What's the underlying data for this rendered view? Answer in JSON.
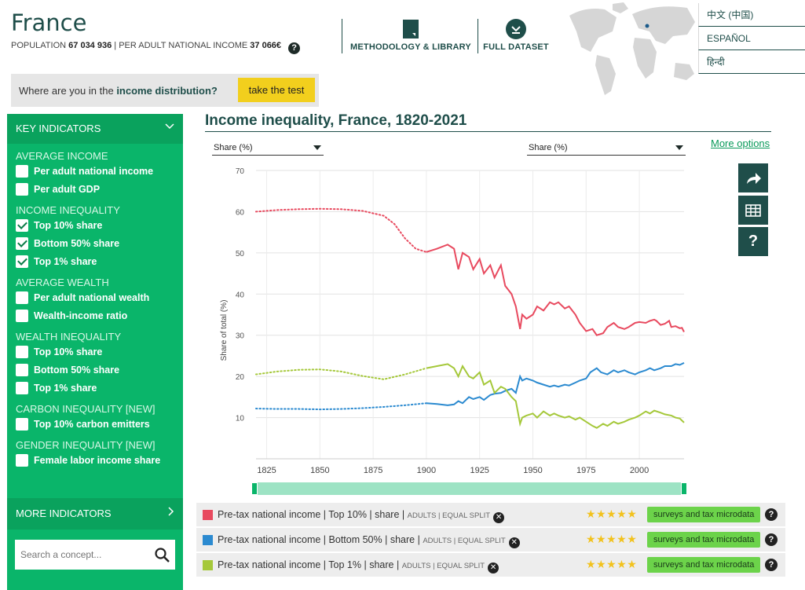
{
  "header": {
    "country": "France",
    "population_label": "POPULATION",
    "population_value": "67 034 936",
    "income_label": "PER ADULT NATIONAL INCOME",
    "income_value": "37 066€",
    "help": "?",
    "methodology": "METHODOLOGY & LIBRARY",
    "dataset": "FULL DATASET"
  },
  "languages": [
    "中文 (中国)",
    "ESPAÑOL",
    "हिन्दी"
  ],
  "test": {
    "question_pre": "Where are you in the",
    "question_bold": "income distribution?",
    "button": "take the test"
  },
  "sidebar": {
    "title": "KEY INDICATORS",
    "sections": [
      {
        "name": "AVERAGE INCOME",
        "items": [
          {
            "label": "Per adult national income",
            "checked": false
          },
          {
            "label": "Per adult GDP",
            "checked": false
          }
        ]
      },
      {
        "name": "INCOME INEQUALITY",
        "items": [
          {
            "label": "Top 10% share",
            "checked": true
          },
          {
            "label": "Bottom 50% share",
            "checked": true
          },
          {
            "label": "Top 1% share",
            "checked": true
          }
        ]
      },
      {
        "name": "AVERAGE WEALTH",
        "items": [
          {
            "label": "Per adult national wealth",
            "checked": false
          },
          {
            "label": "Wealth-income ratio",
            "checked": false
          }
        ]
      },
      {
        "name": "WEALTH INEQUALITY",
        "items": [
          {
            "label": "Top 10% share",
            "checked": false
          },
          {
            "label": "Bottom 50% share",
            "checked": false
          },
          {
            "label": "Top 1% share",
            "checked": false
          }
        ]
      },
      {
        "name": "CARBON INEQUALITY [NEW]",
        "items": [
          {
            "label": "Top 10% carbon emitters",
            "checked": false
          }
        ]
      },
      {
        "name": "GENDER INEQUALITY [NEW]",
        "items": [
          {
            "label": "Female labor income share",
            "checked": false
          }
        ]
      }
    ],
    "more": "MORE INDICATORS",
    "search_placeholder": "Search a concept..."
  },
  "chart_controls": {
    "left_select": "Share (%)",
    "right_select": "Share (%)",
    "more_options": "More options"
  },
  "chart_data": {
    "type": "line",
    "title": "Income inequality, France, 1820-2021",
    "ylabel": "Share of total (%)",
    "xlim": [
      1820,
      2021
    ],
    "ylim": [
      0,
      70
    ],
    "yticks": [
      10,
      20,
      30,
      40,
      50,
      60,
      70
    ],
    "xticks": [
      1825,
      1850,
      1875,
      1900,
      1925,
      1950,
      1975,
      2000
    ],
    "dotted_until": 1900,
    "series": [
      {
        "name": "Pre-tax national income | Top 10% | share",
        "color": "#e84a5f",
        "x": [
          1820,
          1830,
          1840,
          1850,
          1860,
          1870,
          1880,
          1885,
          1890,
          1895,
          1900,
          1905,
          1910,
          1913,
          1915,
          1917,
          1920,
          1922,
          1925,
          1927,
          1930,
          1932,
          1935,
          1937,
          1940,
          1942,
          1944,
          1945,
          1947,
          1950,
          1952,
          1955,
          1958,
          1960,
          1962,
          1965,
          1967,
          1970,
          1972,
          1975,
          1978,
          1980,
          1983,
          1985,
          1988,
          1990,
          1993,
          1995,
          1998,
          2000,
          2003,
          2005,
          2007,
          2008,
          2010,
          2012,
          2014,
          2015,
          2017,
          2019,
          2020,
          2021
        ],
        "y": [
          60,
          60.4,
          60.6,
          60.7,
          60.6,
          60.2,
          59,
          57,
          53.5,
          51,
          50.2,
          51,
          52,
          51,
          46,
          50,
          49,
          46,
          48.5,
          45,
          47,
          44,
          47,
          42,
          40,
          37,
          31.5,
          35,
          34,
          35,
          37,
          36,
          38,
          37.5,
          38,
          36.5,
          37,
          35,
          33,
          31,
          31.5,
          30,
          30.5,
          32,
          33,
          32,
          31.5,
          32,
          33,
          33.2,
          33,
          33.5,
          33.8,
          33.5,
          32.5,
          32.8,
          33.5,
          32,
          32.2,
          31.7,
          31.8,
          30.8
        ]
      },
      {
        "name": "Pre-tax national income | Bottom 50% | share",
        "color": "#2b8ad0",
        "x": [
          1820,
          1830,
          1840,
          1850,
          1860,
          1870,
          1880,
          1890,
          1900,
          1905,
          1910,
          1913,
          1915,
          1917,
          1920,
          1922,
          1925,
          1927,
          1930,
          1932,
          1935,
          1937,
          1940,
          1942,
          1944,
          1945,
          1947,
          1950,
          1952,
          1955,
          1958,
          1960,
          1962,
          1965,
          1967,
          1970,
          1972,
          1975,
          1977,
          1980,
          1982,
          1985,
          1988,
          1990,
          1993,
          1995,
          1998,
          2000,
          2003,
          2005,
          2007,
          2010,
          2012,
          2015,
          2017,
          2019,
          2021
        ],
        "y": [
          12.2,
          12.1,
          12.1,
          12,
          12.1,
          12.3,
          12.6,
          13,
          13.5,
          13.3,
          13,
          13.2,
          14,
          13.5,
          15,
          14.5,
          15,
          14.3,
          15.5,
          15.8,
          16,
          16.5,
          17,
          16,
          20,
          19,
          19.5,
          19,
          18.5,
          18,
          17.5,
          17.8,
          17.5,
          18,
          17.8,
          18.5,
          19,
          19.5,
          21,
          22,
          21,
          20.5,
          21.5,
          21,
          21.5,
          21,
          20.5,
          21,
          21.5,
          22,
          21.5,
          22,
          22.5,
          22.5,
          23,
          22.8,
          23.3
        ]
      },
      {
        "name": "Pre-tax national income | Top 1% | share",
        "color": "#a5c83a",
        "x": [
          1820,
          1830,
          1840,
          1850,
          1860,
          1870,
          1880,
          1890,
          1900,
          1905,
          1910,
          1913,
          1915,
          1917,
          1920,
          1922,
          1925,
          1927,
          1930,
          1932,
          1935,
          1937,
          1940,
          1942,
          1944,
          1945,
          1947,
          1950,
          1952,
          1955,
          1958,
          1960,
          1962,
          1965,
          1967,
          1970,
          1972,
          1975,
          1978,
          1980,
          1983,
          1985,
          1988,
          1990,
          1993,
          1995,
          1998,
          2000,
          2003,
          2005,
          2007,
          2010,
          2012,
          2015,
          2017,
          2019,
          2021
        ],
        "y": [
          20.5,
          21.2,
          21.6,
          21.7,
          21.2,
          20.1,
          19.3,
          20.5,
          22,
          22.5,
          23,
          22,
          20,
          22.5,
          20,
          19.5,
          21,
          18,
          19,
          16,
          17.5,
          17,
          15,
          14,
          8.5,
          10,
          10.5,
          11,
          10,
          11.5,
          10.5,
          11,
          10.5,
          10,
          10.3,
          9.5,
          10,
          9,
          8,
          7.5,
          8.5,
          8,
          9,
          8.5,
          9,
          9.5,
          10,
          10.5,
          11.5,
          11,
          11.7,
          11.2,
          10.8,
          10.5,
          10,
          9.8,
          8.8
        ]
      }
    ]
  },
  "legend": [
    {
      "swatch": "#e84a5f",
      "main": "Pre-tax national income",
      "pct": "Top 10%",
      "share": "share",
      "tags": "ADULTS | EQUAL SPLIT",
      "remove": "✕",
      "stars": "★★★★★",
      "badge": "surveys and tax microdata",
      "help": "?"
    },
    {
      "swatch": "#2b8ad0",
      "main": "Pre-tax national income",
      "pct": "Bottom 50%",
      "share": "share",
      "tags": "ADULTS | EQUAL SPLIT",
      "remove": "✕",
      "stars": "★★★★★",
      "badge": "surveys and tax microdata",
      "help": "?"
    },
    {
      "swatch": "#a5c83a",
      "main": "Pre-tax national income",
      "pct": "Top 1%",
      "share": "share",
      "tags": "ADULTS | EQUAL SPLIT",
      "remove": "✕",
      "stars": "★★★★★",
      "badge": "surveys and tax microdata",
      "help": "?"
    }
  ]
}
